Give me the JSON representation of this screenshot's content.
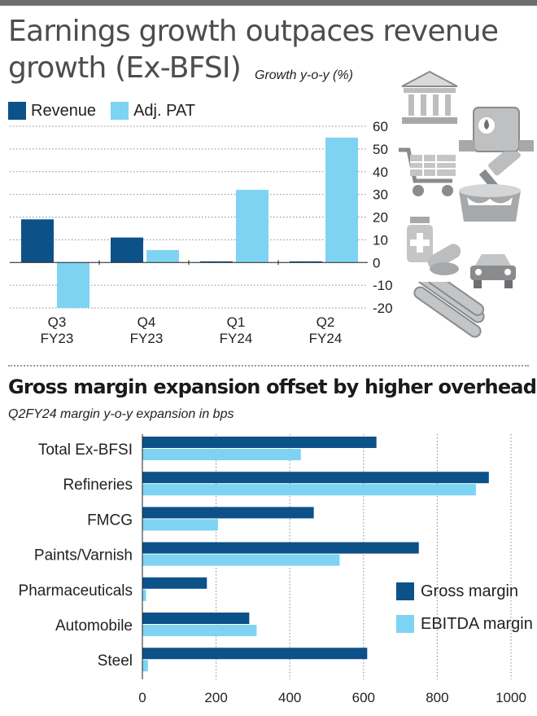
{
  "header": {
    "title_line1": "Earnings growth outpaces revenue",
    "title_line2": "growth (Ex-BFSI)",
    "subtitle": "Growth y-o-y (%)"
  },
  "colors": {
    "dark_blue": "#0d5189",
    "light_blue": "#7ed3f3",
    "grid": "#888888",
    "top_bar": "#6d6e71"
  },
  "icons": [
    "bank-icon",
    "oil-tank-icon",
    "shopping-cart-icon",
    "paint-bucket-icon",
    "medicine-icon",
    "car-icon",
    "steel-pipes-icon"
  ],
  "section2": {
    "title": "Gross margin expansion offset by higher overheads",
    "subtitle": "Q2FY24 margin y-o-y expansion in bps"
  },
  "chart_data": [
    {
      "type": "bar",
      "title": "Earnings growth outpaces revenue growth (Ex-BFSI)",
      "ylabel": "Growth y-o-y (%)",
      "categories": [
        [
          "Q3",
          "FY23"
        ],
        [
          "Q4",
          "FY23"
        ],
        [
          "Q1",
          "FY24"
        ],
        [
          "Q2",
          "FY24"
        ]
      ],
      "series": [
        {
          "name": "Revenue",
          "color": "#0d5189",
          "values": [
            19,
            11,
            0.5,
            0.5
          ]
        },
        {
          "name": "Adj. PAT",
          "color": "#7ed3f3",
          "values": [
            -20,
            5.5,
            32,
            55
          ]
        }
      ],
      "ylim": [
        -20,
        60
      ],
      "yticks": [
        60,
        50,
        40,
        30,
        20,
        10,
        0,
        -10,
        -20
      ],
      "grid": true,
      "legend_position": "top-left"
    },
    {
      "type": "bar",
      "orientation": "horizontal",
      "title": "Gross margin expansion offset by higher overheads",
      "subtitle": "Q2FY24 margin y-o-y expansion in bps",
      "categories": [
        "Total Ex-BFSI",
        "Refineries",
        "FMCG",
        "Paints/Varnish",
        "Pharmaceuticals",
        "Automobile",
        "Steel"
      ],
      "series": [
        {
          "name": "Gross margin",
          "color": "#0d5189",
          "values": [
            635,
            940,
            465,
            750,
            175,
            290,
            610
          ]
        },
        {
          "name": "EBITDA margin",
          "color": "#7ed3f3",
          "values": [
            430,
            905,
            205,
            535,
            10,
            310,
            15
          ]
        }
      ],
      "xlim": [
        0,
        1000
      ],
      "xticks": [
        0,
        200,
        400,
        600,
        800,
        1000
      ],
      "grid": true,
      "legend_position": "bottom-right"
    }
  ]
}
